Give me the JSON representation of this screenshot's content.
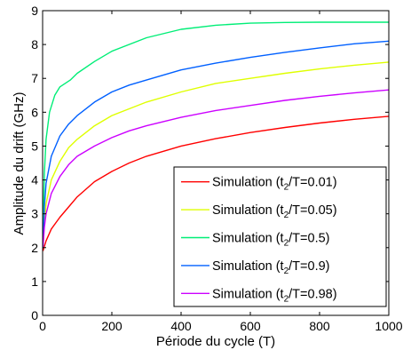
{
  "chart_data": {
    "type": "line",
    "xlabel": "Période du cycle (T)",
    "ylabel": "Amplitude du drift (GHz)",
    "xlim": [
      0,
      1000
    ],
    "ylim": [
      0,
      9
    ],
    "xticks": [
      0,
      200,
      400,
      600,
      800,
      1000
    ],
    "yticks": [
      0,
      1,
      2,
      3,
      4,
      5,
      6,
      7,
      8,
      9
    ],
    "grid": false,
    "legend_position": "bottom-right",
    "series": [
      {
        "name": "Simulation (t2/T=0.01)",
        "legend_prefix": "Simulation (t",
        "legend_sub": "2",
        "legend_suffix": "/T=0.01)",
        "color": "#ff0000",
        "x": [
          1,
          10,
          25,
          50,
          75,
          100,
          150,
          200,
          250,
          300,
          400,
          500,
          600,
          700,
          800,
          900,
          1000
        ],
        "y": [
          1.9,
          2.2,
          2.55,
          2.9,
          3.2,
          3.5,
          3.95,
          4.25,
          4.5,
          4.7,
          5.0,
          5.22,
          5.4,
          5.55,
          5.68,
          5.79,
          5.88
        ]
      },
      {
        "name": "Simulation (t2/T=0.05)",
        "legend_prefix": "Simulation (t",
        "legend_sub": "2",
        "legend_suffix": "/T=0.05)",
        "color": "#dfff00",
        "x": [
          1,
          5,
          10,
          25,
          50,
          75,
          100,
          150,
          200,
          250,
          300,
          400,
          500,
          600,
          700,
          800,
          900,
          1000
        ],
        "y": [
          2.0,
          2.7,
          3.3,
          4.0,
          4.55,
          4.95,
          5.2,
          5.6,
          5.9,
          6.1,
          6.3,
          6.6,
          6.85,
          7.0,
          7.15,
          7.28,
          7.39,
          7.48
        ]
      },
      {
        "name": "Simulation (t2/T=0.5)",
        "legend_prefix": "Simulation (t",
        "legend_sub": "2",
        "legend_suffix": "/T=0.5)",
        "color": "#00ee77",
        "x": [
          1,
          3,
          5,
          10,
          20,
          35,
          50,
          80,
          100,
          150,
          200,
          300,
          400,
          500,
          600,
          700,
          800,
          900,
          1000
        ],
        "y": [
          2.0,
          3.3,
          4.2,
          5.2,
          6.0,
          6.5,
          6.75,
          6.95,
          7.15,
          7.5,
          7.8,
          8.2,
          8.45,
          8.57,
          8.63,
          8.65,
          8.66,
          8.66,
          8.66
        ]
      },
      {
        "name": "Simulation (t2/T=0.9)",
        "legend_prefix": "Simulation (t",
        "legend_sub": "2",
        "legend_suffix": "/T=0.9)",
        "color": "#0060ff",
        "x": [
          1,
          5,
          10,
          25,
          50,
          75,
          100,
          150,
          200,
          250,
          300,
          400,
          500,
          600,
          700,
          800,
          900,
          1000
        ],
        "y": [
          2.0,
          3.2,
          3.9,
          4.7,
          5.3,
          5.65,
          5.9,
          6.3,
          6.6,
          6.8,
          6.95,
          7.25,
          7.45,
          7.62,
          7.77,
          7.9,
          8.02,
          8.1
        ]
      },
      {
        "name": "Simulation (t2/T=0.98)",
        "legend_prefix": "Simulation (t",
        "legend_sub": "2",
        "legend_suffix": "/T=0.98)",
        "color": "#cc00ff",
        "x": [
          1,
          5,
          10,
          25,
          50,
          75,
          100,
          150,
          200,
          250,
          300,
          400,
          500,
          600,
          700,
          800,
          900,
          1000
        ],
        "y": [
          2.0,
          2.6,
          3.0,
          3.6,
          4.1,
          4.45,
          4.7,
          5.0,
          5.25,
          5.45,
          5.6,
          5.85,
          6.05,
          6.2,
          6.35,
          6.47,
          6.57,
          6.66
        ]
      }
    ]
  }
}
